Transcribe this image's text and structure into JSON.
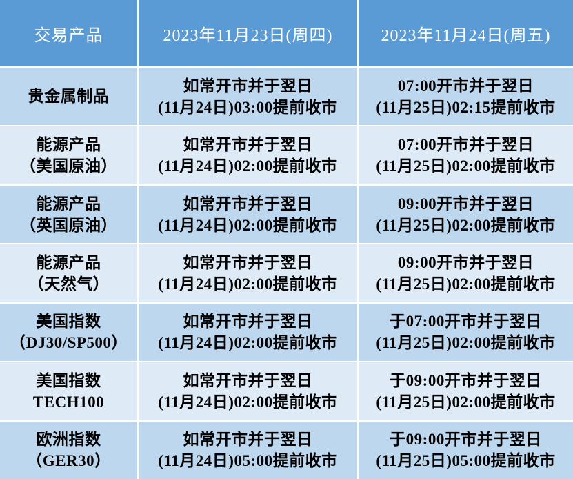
{
  "colors": {
    "header_bg": "#5B9BD5",
    "header_text": "#FFFFFF",
    "row_shade_strong": "#BDD7EE",
    "row_shade_light": "#DEEAF6",
    "divider": "#FFFFFF",
    "body_text": "#000000"
  },
  "table": {
    "columns": [
      "交易产品",
      "2023年11月23日(周四)",
      "2023年11月24日(周五)"
    ],
    "rows": [
      {
        "product": [
          "贵金属制品"
        ],
        "day1": [
          "如常开市并于翌日",
          "(11月24日)03:00提前收市"
        ],
        "day2": [
          "07:00开市并于翌日",
          "(11月25日)02:15提前收市"
        ]
      },
      {
        "product": [
          "能源产品",
          "（美国原油）"
        ],
        "day1": [
          "如常开市并于翌日",
          "(11月24日)02:00提前收市"
        ],
        "day2": [
          "07:00开市并于翌日",
          "(11月25日)02:00提前收市"
        ]
      },
      {
        "product": [
          "能源产品",
          "（英国原油）"
        ],
        "day1": [
          "如常开市并于翌日",
          "(11月24日)02:00提前收市"
        ],
        "day2": [
          "09:00开市并于翌日",
          "(11月25日)02:00提前收市"
        ]
      },
      {
        "product": [
          "能源产品",
          "（天然气）"
        ],
        "day1": [
          "如常开市并于翌日",
          "(11月24日)02:00提前收市"
        ],
        "day2": [
          "09:00开市并于翌日",
          "(11月25日)02:00提前收市"
        ]
      },
      {
        "product": [
          "美国指数",
          "（DJ30/SP500）"
        ],
        "day1": [
          "如常开市并于翌日",
          "(11月24日)02:00提前收市"
        ],
        "day2": [
          "于07:00开市并于翌日",
          "(11月25日)02:00提前收市"
        ]
      },
      {
        "product": [
          "美国指数",
          "TECH100"
        ],
        "day1": [
          "如常开市并于翌日",
          "(11月24日)02:00提前收市"
        ],
        "day2": [
          "于09:00开市并于翌日",
          "(11月25日)02:00提前收市"
        ]
      },
      {
        "product": [
          "欧洲指数",
          "（GER30）"
        ],
        "day1": [
          "如常开市并于翌日",
          "(11月24日)05:00提前收市"
        ],
        "day2": [
          "于09:00开市并于翌日",
          "(11月25日)05:00提前收市"
        ]
      }
    ]
  }
}
